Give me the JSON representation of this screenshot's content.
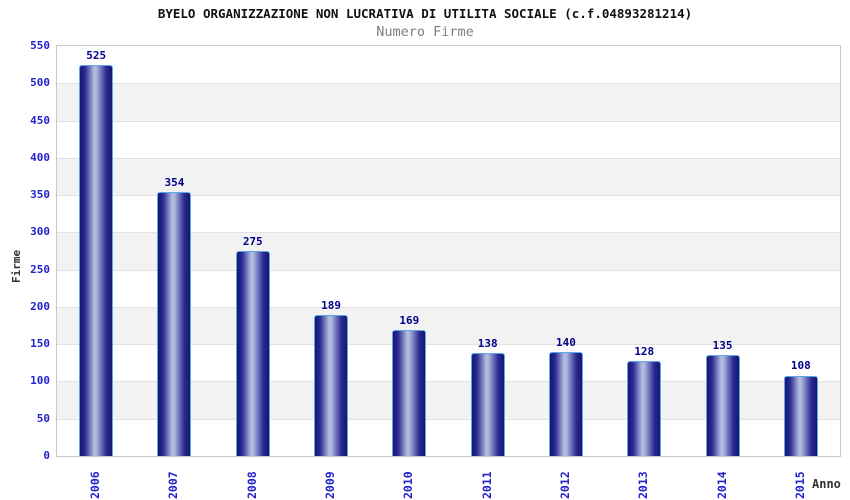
{
  "header": {
    "title": "BYELO ORGANIZZAZIONE NON LUCRATIVA DI UTILITA SOCIALE (c.f.04893281214)",
    "subtitle": "Numero Firme"
  },
  "chart_data": {
    "type": "bar",
    "title": "BYELO ORGANIZZAZIONE NON LUCRATIVA DI UTILITA SOCIALE (c.f.04893281214)",
    "subtitle": "Numero Firme",
    "xlabel": "Anno",
    "ylabel": "Firme",
    "categories": [
      "2006",
      "2007",
      "2008",
      "2009",
      "2010",
      "2011",
      "2012",
      "2013",
      "2014",
      "2015"
    ],
    "values": [
      525,
      354,
      275,
      189,
      169,
      138,
      140,
      128,
      135,
      108
    ],
    "ylim": [
      0,
      550
    ],
    "ytick_step": 50,
    "yticks": [
      0,
      50,
      100,
      150,
      200,
      250,
      300,
      350,
      400,
      450,
      500,
      550
    ],
    "grid": "horizontal alternating bands white/gray with light gridlines every 50",
    "legend": "none",
    "value_labels": "above each bar",
    "colors": {
      "bar_dark": "#161670",
      "bar_mid": "#2a2a94",
      "bar_light": "#b2bbde",
      "bar_border": "#5aa9e6",
      "tick_label": "#2323cc",
      "value_label": "#00008b",
      "band_gray": "#f2f2f2",
      "band_white": "#ffffff",
      "gridline": "#e2e2e2",
      "plot_border": "#c8c8c8",
      "title": "#111111",
      "subtitle": "#808080",
      "axis_title": "#333333"
    }
  }
}
